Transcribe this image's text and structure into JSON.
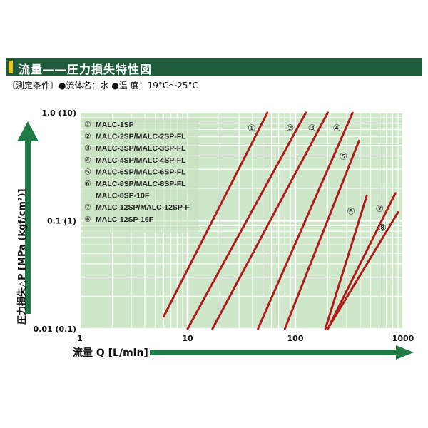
{
  "header": {
    "title": "流量――圧力損失特性図"
  },
  "conditions": {
    "text": "〔測定条件〕●流体名：水 ●温 度：19°C～25°C"
  },
  "colors": {
    "header_bg": "#1f5a3a",
    "accent": "#e9c51f",
    "plot_bg": "#cfe7c9",
    "grid": "#ffffff",
    "line": "#b01a1a",
    "arrow": "#1f7a45"
  },
  "chart_data": {
    "type": "line",
    "title": "流量――圧力損失特性図",
    "xlabel": "流量 Q [L/min]",
    "ylabel": "圧力損失△P [MPa (kgf/cm²)]",
    "x_scale": "log",
    "y_scale": "log",
    "xlim": [
      1,
      1000
    ],
    "ylim": [
      0.01,
      1.0
    ],
    "x_ticks": [
      {
        "value": 1,
        "label": "1"
      },
      {
        "value": 10,
        "label": "10"
      },
      {
        "value": 100,
        "label": "100"
      },
      {
        "value": 1000,
        "label": "1000"
      }
    ],
    "y_ticks": [
      {
        "value": 1.0,
        "label": "1.0 (10)"
      },
      {
        "value": 0.1,
        "label": "0.1 (1)"
      },
      {
        "value": 0.01,
        "label": "0.01 (0.1)"
      }
    ],
    "grid": true,
    "legend_position": "top-left",
    "legend": [
      {
        "marker": "①",
        "text": "MALC-1SP"
      },
      {
        "marker": "②",
        "text": "MALC-2SP/MALC-2SP-FL"
      },
      {
        "marker": "③",
        "text": "MALC-3SP/MALC-3SP-FL"
      },
      {
        "marker": "④",
        "text": "MALC-4SP/MALC-4SP-FL"
      },
      {
        "marker": "⑤",
        "text": "MALC-6SP/MALC-6SP-FL"
      },
      {
        "marker": "⑥",
        "text": "MALC-8SP/MALC-8SP-FL"
      },
      {
        "marker": "",
        "text": "MALC-8SP-10F"
      },
      {
        "marker": "⑦",
        "text": "MALC-12SP/MALC-12SP-F"
      },
      {
        "marker": "⑧",
        "text": "MALC-12SP-16F"
      }
    ],
    "series": [
      {
        "name": "①",
        "points": [
          [
            6,
            0.013
          ],
          [
            55,
            1.0
          ]
        ]
      },
      {
        "name": "②",
        "points": [
          [
            10,
            0.01
          ],
          [
            125,
            1.0
          ]
        ]
      },
      {
        "name": "③",
        "points": [
          [
            17,
            0.01
          ],
          [
            200,
            1.0
          ]
        ]
      },
      {
        "name": "④",
        "points": [
          [
            45,
            0.01
          ],
          [
            340,
            1.0
          ]
        ]
      },
      {
        "name": "⑤",
        "points": [
          [
            80,
            0.01
          ],
          [
            390,
            0.55
          ]
        ]
      },
      {
        "name": "⑥",
        "points": [
          [
            190,
            0.01
          ],
          [
            460,
            0.17
          ]
        ]
      },
      {
        "name": "⑦",
        "points": [
          [
            200,
            0.01
          ],
          [
            850,
            0.18
          ]
        ]
      },
      {
        "name": "⑧",
        "points": [
          [
            200,
            0.01
          ],
          [
            900,
            0.12
          ]
        ]
      }
    ]
  }
}
